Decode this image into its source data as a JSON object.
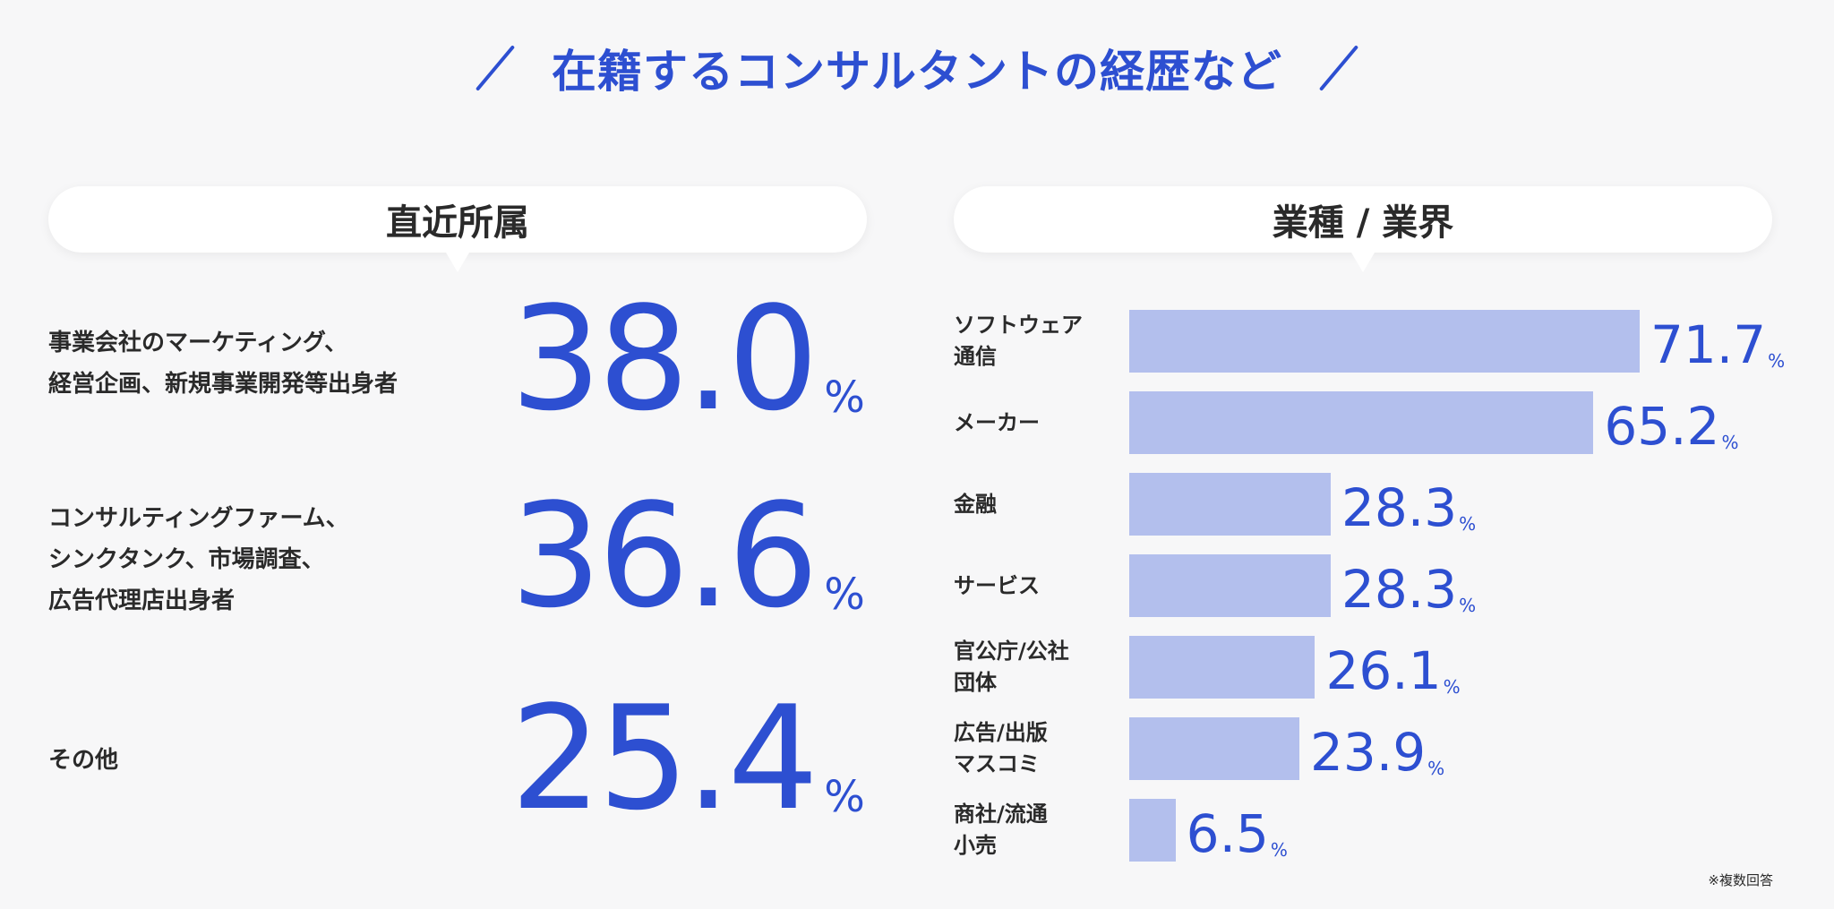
{
  "title": "在籍するコンサルタントの経歴など",
  "left_panel": {
    "heading": "直近所属",
    "pct_symbol": "%",
    "items": [
      {
        "label_lines": [
          "事業会社のマーケティング、",
          "経営企画、新規事業開発等出身者"
        ],
        "value": "38.0"
      },
      {
        "label_lines": [
          "コンサルティングファーム、",
          "シンクタンク、市場調査、",
          "広告代理店出身者"
        ],
        "value": "36.6"
      },
      {
        "label_lines": [
          "その他"
        ],
        "value": "25.4"
      }
    ]
  },
  "right_panel": {
    "heading": "業種 / 業界",
    "note": "※複数回答"
  },
  "colors": {
    "accent": "#2d4fd1",
    "bar": "#b3bfed",
    "text": "#2a2a2a",
    "background": "#f7f7f8"
  },
  "chart_data": {
    "type": "bar",
    "orientation": "horizontal",
    "title": "業種 / 業界",
    "categories": [
      [
        "ソフトウェア",
        "通信"
      ],
      [
        "メーカー"
      ],
      [
        "金融"
      ],
      [
        "サービス"
      ],
      [
        "官公庁/公社",
        "団体"
      ],
      [
        "広告/出版",
        "マスコミ"
      ],
      [
        "商社/流通",
        "小売"
      ]
    ],
    "values": [
      71.7,
      65.2,
      28.3,
      28.3,
      26.1,
      23.9,
      6.5
    ],
    "unit": "%",
    "xlim": [
      0,
      100
    ],
    "grid": false,
    "legend": "none"
  }
}
